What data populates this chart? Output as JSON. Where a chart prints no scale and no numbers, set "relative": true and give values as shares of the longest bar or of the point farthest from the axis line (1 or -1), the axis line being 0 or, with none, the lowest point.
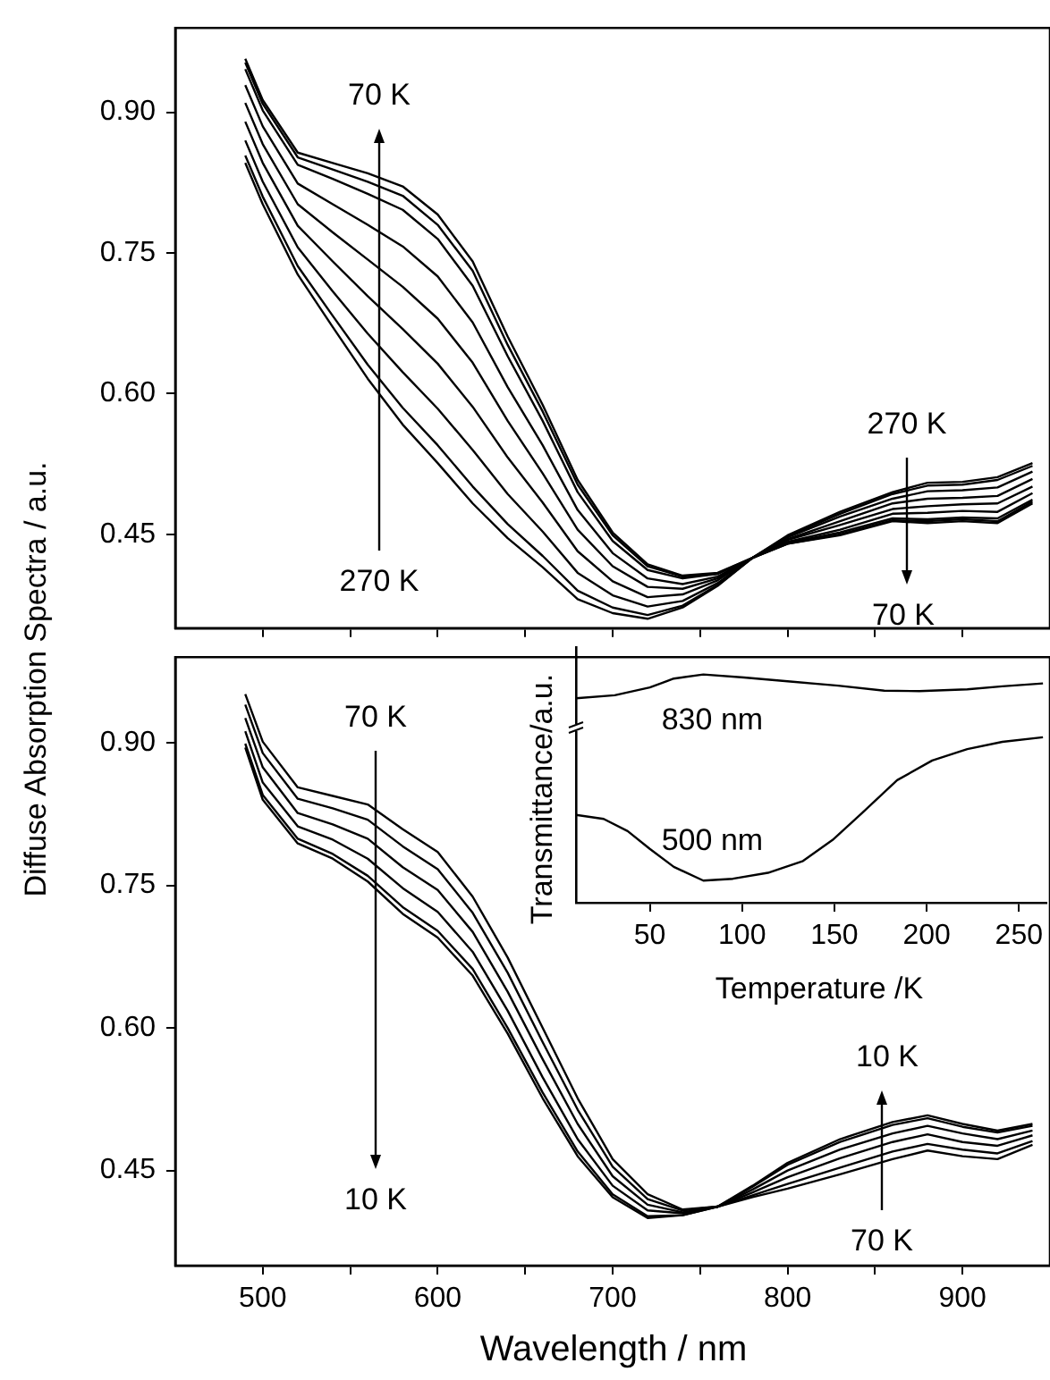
{
  "chart_data": [
    {
      "type": "line",
      "ylabel": "Diffuse Absorption Spectra / a.u.",
      "xlim": [
        450,
        950
      ],
      "ylim": [
        0.35,
        0.99
      ],
      "xticks": [
        500,
        {
          "value": 550,
          "label": null
        },
        600,
        {
          "value": 650,
          "label": null
        },
        700,
        {
          "value": 750,
          "label": null
        },
        800,
        {
          "value": 850,
          "label": null
        },
        900
      ],
      "yticks": [
        {
          "value": 0.45,
          "label": "0.45"
        },
        {
          "value": 0.6,
          "label": "0.60"
        },
        {
          "value": 0.75,
          "label": "0.75"
        },
        {
          "value": 0.9,
          "label": "0.90"
        }
      ],
      "tick_labels": "y",
      "x": [
        490,
        500,
        520,
        540,
        560,
        580,
        600,
        620,
        640,
        660,
        680,
        700,
        720,
        740,
        760,
        780,
        800,
        830,
        860,
        880,
        900,
        920,
        940
      ],
      "series": [
        {
          "color": "#000000",
          "values": [
            0.957,
            0.913,
            0.857,
            0.846,
            0.835,
            0.821,
            0.791,
            0.741,
            0.661,
            0.588,
            0.508,
            0.452,
            0.418,
            0.406,
            0.409,
            0.425,
            0.44,
            0.449,
            0.464,
            0.462,
            0.464,
            0.462,
            0.483
          ]
        },
        {
          "color": "#000000",
          "values": [
            0.953,
            0.909,
            0.852,
            0.839,
            0.826,
            0.811,
            0.78,
            0.731,
            0.652,
            0.581,
            0.503,
            0.449,
            0.416,
            0.405,
            0.408,
            0.425,
            0.44,
            0.45,
            0.465,
            0.464,
            0.466,
            0.464,
            0.485
          ]
        },
        {
          "color": "#000000",
          "values": [
            0.946,
            0.902,
            0.844,
            0.829,
            0.813,
            0.796,
            0.765,
            0.715,
            0.64,
            0.571,
            0.495,
            0.443,
            0.412,
            0.403,
            0.408,
            0.425,
            0.441,
            0.452,
            0.467,
            0.466,
            0.468,
            0.467,
            0.487
          ]
        },
        {
          "color": "#000000",
          "values": [
            0.929,
            0.885,
            0.824,
            0.802,
            0.78,
            0.757,
            0.725,
            0.676,
            0.607,
            0.545,
            0.476,
            0.43,
            0.403,
            0.397,
            0.405,
            0.425,
            0.442,
            0.455,
            0.472,
            0.473,
            0.475,
            0.474,
            0.494
          ]
        },
        {
          "color": "#000000",
          "values": [
            0.91,
            0.866,
            0.802,
            0.772,
            0.743,
            0.714,
            0.68,
            0.633,
            0.571,
            0.515,
            0.455,
            0.416,
            0.394,
            0.392,
            0.403,
            0.425,
            0.444,
            0.46,
            0.477,
            0.48,
            0.482,
            0.483,
            0.501
          ]
        },
        {
          "color": "#000000",
          "values": [
            0.89,
            0.846,
            0.779,
            0.741,
            0.704,
            0.669,
            0.632,
            0.586,
            0.532,
            0.484,
            0.432,
            0.4,
            0.383,
            0.386,
            0.401,
            0.425,
            0.445,
            0.464,
            0.483,
            0.488,
            0.489,
            0.491,
            0.509
          ]
        },
        {
          "color": "#000000",
          "values": [
            0.87,
            0.826,
            0.756,
            0.709,
            0.664,
            0.623,
            0.584,
            0.54,
            0.493,
            0.453,
            0.409,
            0.385,
            0.373,
            0.379,
            0.398,
            0.425,
            0.447,
            0.469,
            0.488,
            0.496,
            0.497,
            0.5,
            0.517
          ]
        },
        {
          "color": "#000000",
          "values": [
            0.854,
            0.81,
            0.736,
            0.683,
            0.631,
            0.585,
            0.545,
            0.501,
            0.461,
            0.427,
            0.39,
            0.372,
            0.364,
            0.374,
            0.396,
            0.425,
            0.448,
            0.472,
            0.493,
            0.502,
            0.503,
            0.508,
            0.523
          ]
        },
        {
          "color": "#000000",
          "values": [
            0.846,
            0.802,
            0.727,
            0.671,
            0.616,
            0.567,
            0.526,
            0.483,
            0.446,
            0.415,
            0.381,
            0.366,
            0.36,
            0.372,
            0.395,
            0.425,
            0.449,
            0.474,
            0.495,
            0.505,
            0.506,
            0.511,
            0.526
          ]
        }
      ],
      "annotations": [
        "270 K",
        "70 K",
        "270 K",
        "70 K"
      ]
    },
    {
      "type": "line",
      "xlabel": "Wavelength / nm",
      "xlim": [
        450,
        950
      ],
      "ylim": [
        0.35,
        0.99
      ],
      "xticks": [
        500,
        {
          "value": 550,
          "label": null
        },
        600,
        {
          "value": 650,
          "label": null
        },
        700,
        {
          "value": 750,
          "label": null
        },
        800,
        {
          "value": 850,
          "label": null
        },
        900
      ],
      "yticks": [
        {
          "value": 0.45,
          "label": "0.45"
        },
        {
          "value": 0.6,
          "label": "0.60"
        },
        {
          "value": 0.75,
          "label": "0.75"
        },
        {
          "value": 0.9,
          "label": "0.90"
        }
      ],
      "x": [
        490,
        500,
        520,
        540,
        560,
        580,
        600,
        620,
        640,
        660,
        680,
        700,
        720,
        740,
        760,
        780,
        800,
        830,
        860,
        880,
        900,
        920,
        940
      ],
      "series": [
        {
          "color": "#000000",
          "values": [
            0.951,
            0.901,
            0.853,
            0.844,
            0.835,
            0.809,
            0.785,
            0.738,
            0.674,
            0.6,
            0.526,
            0.462,
            0.425,
            0.409,
            0.412,
            0.422,
            0.431,
            0.446,
            0.462,
            0.471,
            0.465,
            0.462,
            0.477
          ]
        },
        {
          "color": "#000000",
          "values": [
            0.94,
            0.889,
            0.841,
            0.831,
            0.819,
            0.791,
            0.767,
            0.721,
            0.658,
            0.585,
            0.514,
            0.454,
            0.42,
            0.408,
            0.412,
            0.424,
            0.436,
            0.453,
            0.47,
            0.478,
            0.472,
            0.468,
            0.481
          ]
        },
        {
          "color": "#000000",
          "values": [
            0.926,
            0.874,
            0.826,
            0.814,
            0.799,
            0.769,
            0.745,
            0.701,
            0.638,
            0.567,
            0.499,
            0.444,
            0.414,
            0.406,
            0.412,
            0.427,
            0.443,
            0.463,
            0.48,
            0.488,
            0.48,
            0.476,
            0.487
          ]
        },
        {
          "color": "#000000",
          "values": [
            0.912,
            0.858,
            0.812,
            0.798,
            0.778,
            0.747,
            0.722,
            0.68,
            0.618,
            0.548,
            0.483,
            0.434,
            0.408,
            0.405,
            0.412,
            0.43,
            0.45,
            0.472,
            0.489,
            0.497,
            0.489,
            0.483,
            0.492
          ]
        },
        {
          "color": "#000000",
          "values": [
            0.899,
            0.845,
            0.799,
            0.783,
            0.76,
            0.727,
            0.702,
            0.662,
            0.6,
            0.532,
            0.47,
            0.425,
            0.402,
            0.403,
            0.412,
            0.433,
            0.456,
            0.48,
            0.498,
            0.505,
            0.496,
            0.49,
            0.497
          ]
        },
        {
          "color": "#000000",
          "values": [
            0.895,
            0.84,
            0.794,
            0.778,
            0.754,
            0.72,
            0.695,
            0.655,
            0.594,
            0.526,
            0.465,
            0.422,
            0.4,
            0.403,
            0.412,
            0.434,
            0.458,
            0.483,
            0.501,
            0.508,
            0.499,
            0.492,
            0.499
          ]
        }
      ],
      "annotations": [
        "70 K",
        "10 K",
        "70 K",
        "10 K"
      ]
    },
    {
      "type": "line",
      "xlabel": "Temperature /K",
      "ylabel": "Transmittance/a.u.",
      "relative": true,
      "xlim": [
        10,
        265
      ],
      "xticks": [
        50,
        100,
        150,
        200,
        250
      ],
      "series": [
        {
          "name": "830 nm",
          "color": "#000000",
          "x": [
            10,
            31,
            50,
            63,
            79,
            101,
            126,
            152,
            177,
            196,
            222,
            241,
            263
          ],
          "values": [
            0.896,
            0.909,
            0.943,
            0.982,
            1.0,
            0.987,
            0.969,
            0.951,
            0.929,
            0.927,
            0.935,
            0.948,
            0.961
          ]
        },
        {
          "name": "500 nm",
          "color": "#000000",
          "x": [
            10,
            25,
            38,
            50,
            63,
            79,
            95,
            114,
            133,
            149,
            165,
            184,
            203,
            222,
            241,
            263
          ],
          "values": [
            0.385,
            0.367,
            0.314,
            0.236,
            0.157,
            0.097,
            0.105,
            0.131,
            0.183,
            0.275,
            0.393,
            0.537,
            0.623,
            0.673,
            0.705,
            0.725
          ]
        }
      ]
    }
  ]
}
